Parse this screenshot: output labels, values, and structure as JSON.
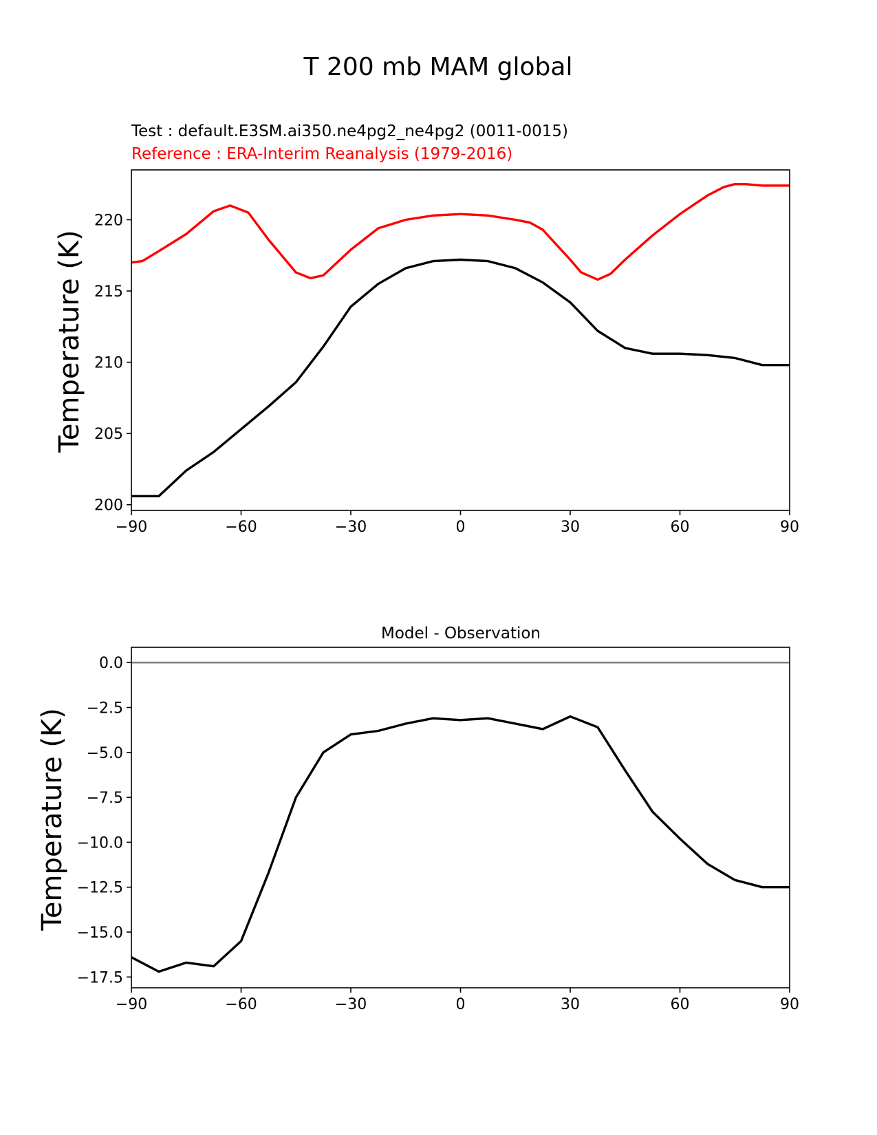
{
  "figure": {
    "suptitle": "T 200 mb MAM global"
  },
  "chart_data": [
    {
      "type": "line",
      "test_label": "Test : default.E3SM.ai350.ne4pg2_ne4pg2 (0011-0015)",
      "reference_label": "Reference : ERA-Interim Reanalysis (1979-2016)",
      "title": "",
      "xlabel": "",
      "ylabel": "Temperature (K)",
      "xlim": [
        -90,
        90
      ],
      "ylim": [
        199.6,
        223.5
      ],
      "xticks": [
        -90,
        -60,
        -30,
        0,
        30,
        60,
        90
      ],
      "xtick_labels": [
        "−90",
        "−60",
        "−30",
        "0",
        "30",
        "60",
        "90"
      ],
      "yticks": [
        200,
        205,
        210,
        215,
        220
      ],
      "ytick_labels": [
        "200",
        "205",
        "210",
        "215",
        "220"
      ],
      "grid": false,
      "series": [
        {
          "name": "Test",
          "color": "#000000",
          "x": [
            -90,
            -82.5,
            -75,
            -67.5,
            -60,
            -52.5,
            -45,
            -37.5,
            -30,
            -22.5,
            -15,
            -7.5,
            0,
            7.5,
            15,
            22.5,
            30,
            37.5,
            45,
            52.5,
            60,
            67.5,
            75,
            82.5,
            90
          ],
          "y": [
            200.6,
            200.6,
            202.4,
            203.7,
            205.3,
            206.9,
            208.6,
            211.1,
            213.9,
            215.5,
            216.6,
            217.1,
            217.2,
            217.1,
            216.6,
            215.6,
            214.2,
            212.2,
            211.0,
            210.6,
            210.6,
            210.5,
            210.3,
            209.8,
            209.8
          ]
        },
        {
          "name": "Reference",
          "color": "#ff0000",
          "x": [
            -90,
            -87,
            -82.5,
            -75,
            -67.5,
            -63,
            -58,
            -52.5,
            -45,
            -41,
            -37.5,
            -30,
            -22.5,
            -15,
            -7.5,
            0,
            7.5,
            15,
            19,
            22.5,
            30,
            33,
            37.5,
            41,
            45,
            52.5,
            60,
            67.5,
            72,
            75,
            78,
            82.5,
            90
          ],
          "y": [
            217.0,
            217.1,
            217.8,
            219.0,
            220.6,
            221.0,
            220.5,
            218.6,
            216.3,
            215.9,
            216.1,
            217.9,
            219.4,
            220.0,
            220.3,
            220.4,
            220.3,
            220.0,
            219.8,
            219.3,
            217.2,
            216.3,
            215.8,
            216.2,
            217.2,
            218.9,
            220.4,
            221.7,
            222.3,
            222.5,
            222.5,
            222.4,
            222.4
          ]
        }
      ]
    },
    {
      "type": "line",
      "title": "Model - Observation",
      "xlabel": "",
      "ylabel": "Temperature (K)",
      "xlim": [
        -90,
        90
      ],
      "ylim": [
        -18.1,
        0.85
      ],
      "xticks": [
        -90,
        -60,
        -30,
        0,
        30,
        60,
        90
      ],
      "xtick_labels": [
        "−90",
        "−60",
        "−30",
        "0",
        "30",
        "60",
        "90"
      ],
      "yticks": [
        0,
        -2.5,
        -5,
        -7.5,
        -10,
        -12.5,
        -15,
        -17.5
      ],
      "ytick_labels": [
        "0.0",
        "−2.5",
        "−5.0",
        "−7.5",
        "−10.0",
        "−12.5",
        "−15.0",
        "−17.5"
      ],
      "grid": false,
      "zero_line": {
        "y": 0,
        "color": "#808080"
      },
      "series": [
        {
          "name": "Difference",
          "color": "#000000",
          "x": [
            -90,
            -82.5,
            -75,
            -67.5,
            -60,
            -52.5,
            -45,
            -37.5,
            -30,
            -22.5,
            -15,
            -7.5,
            0,
            7.5,
            15,
            22.5,
            30,
            37.5,
            45,
            52.5,
            60,
            67.5,
            75,
            82.5,
            90
          ],
          "y": [
            -16.4,
            -17.2,
            -16.7,
            -16.9,
            -15.5,
            -11.7,
            -7.5,
            -5.0,
            -4.0,
            -3.8,
            -3.4,
            -3.1,
            -3.2,
            -3.1,
            -3.4,
            -3.7,
            -3.0,
            -3.6,
            -6.0,
            -8.3,
            -9.8,
            -11.2,
            -12.1,
            -12.5,
            -12.5
          ]
        }
      ]
    }
  ]
}
